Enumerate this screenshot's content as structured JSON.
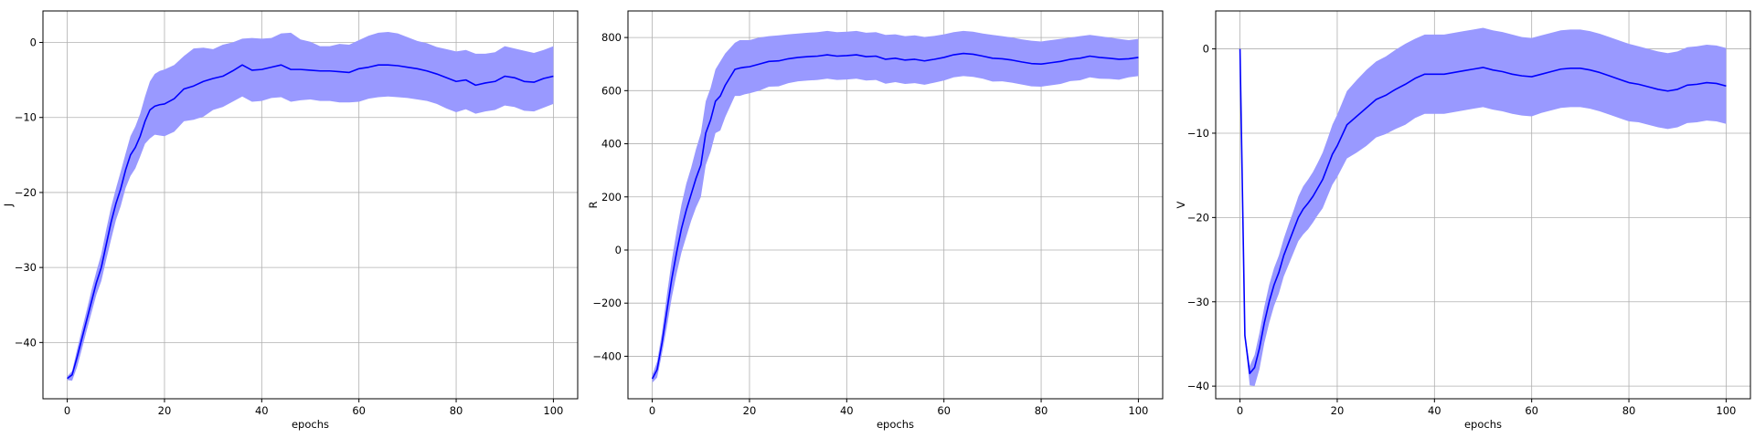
{
  "chart_data": [
    {
      "type": "line",
      "xlabel": "epochs",
      "ylabel": "J",
      "xlim": [
        -5,
        105
      ],
      "ylim": [
        -47.5,
        4.2
      ],
      "xticks": [
        0,
        20,
        40,
        60,
        80,
        100
      ],
      "yticks": [
        -40,
        -30,
        -20,
        -10,
        0
      ],
      "grid": true,
      "series": [
        {
          "x": [
            0,
            1,
            2,
            3,
            4,
            5,
            6,
            7,
            8,
            9,
            10,
            11,
            12,
            13,
            14,
            15,
            16,
            17,
            18,
            19,
            20,
            22,
            24,
            26,
            28,
            30,
            32,
            34,
            36,
            38,
            40,
            42,
            44,
            46,
            48,
            50,
            52,
            54,
            56,
            58,
            60,
            62,
            64,
            66,
            68,
            70,
            72,
            74,
            76,
            78,
            80,
            82,
            84,
            86,
            88,
            90,
            92,
            94,
            96,
            98,
            100
          ],
          "mean": [
            -44.8,
            -44.3,
            -42.0,
            -39.5,
            -37.0,
            -34.5,
            -32.0,
            -30.0,
            -27.0,
            -24.0,
            -21.5,
            -19.5,
            -17.0,
            -15.0,
            -14.0,
            -12.5,
            -10.5,
            -9.0,
            -8.5,
            -8.3,
            -8.2,
            -7.5,
            -6.2,
            -5.8,
            -5.2,
            -4.8,
            -4.5,
            -3.8,
            -3.0,
            -3.7,
            -3.6,
            -3.3,
            -3.0,
            -3.6,
            -3.6,
            -3.7,
            -3.8,
            -3.8,
            -3.9,
            -4.0,
            -3.5,
            -3.3,
            -3.0,
            -3.0,
            -3.1,
            -3.3,
            -3.5,
            -3.8,
            -4.2,
            -4.7,
            -5.2,
            -5.0,
            -5.7,
            -5.4,
            -5.2,
            -4.5,
            -4.7,
            -5.2,
            -5.3,
            -4.8,
            -4.5
          ],
          "upper": [
            -44.5,
            -43.8,
            -41.0,
            -38.3,
            -35.7,
            -33.0,
            -30.5,
            -28.2,
            -25.0,
            -22.0,
            -19.5,
            -17.2,
            -14.8,
            -12.5,
            -11.2,
            -9.5,
            -7.2,
            -5.2,
            -4.2,
            -3.8,
            -3.6,
            -3.0,
            -1.8,
            -0.8,
            -0.7,
            -0.9,
            -0.3,
            0.0,
            0.5,
            0.6,
            0.5,
            0.6,
            1.2,
            1.3,
            0.4,
            0.1,
            -0.5,
            -0.5,
            -0.2,
            -0.3,
            0.3,
            0.9,
            1.3,
            1.4,
            1.2,
            0.7,
            0.2,
            -0.1,
            -0.6,
            -0.9,
            -1.2,
            -1.0,
            -1.5,
            -1.5,
            -1.3,
            -0.5,
            -0.8,
            -1.1,
            -1.4,
            -1.0,
            -0.5
          ],
          "lower": [
            -45.0,
            -45.1,
            -43.3,
            -40.9,
            -38.4,
            -36.0,
            -33.6,
            -31.8,
            -29.0,
            -26.3,
            -23.7,
            -21.8,
            -19.4,
            -17.8,
            -16.8,
            -15.2,
            -13.5,
            -12.8,
            -12.3,
            -12.4,
            -12.5,
            -11.9,
            -10.5,
            -10.3,
            -9.9,
            -9.0,
            -8.6,
            -7.9,
            -7.2,
            -7.9,
            -7.8,
            -7.4,
            -7.3,
            -7.9,
            -7.7,
            -7.6,
            -7.8,
            -7.8,
            -8.0,
            -8.0,
            -7.9,
            -7.5,
            -7.3,
            -7.2,
            -7.3,
            -7.4,
            -7.6,
            -7.8,
            -8.2,
            -8.8,
            -9.3,
            -8.9,
            -9.5,
            -9.2,
            -9.0,
            -8.4,
            -8.6,
            -9.1,
            -9.2,
            -8.7,
            -8.2
          ]
        }
      ]
    },
    {
      "type": "line",
      "xlabel": "epochs",
      "ylabel": "R",
      "xlim": [
        -5,
        105
      ],
      "ylim": [
        -560,
        900
      ],
      "xticks": [
        0,
        20,
        40,
        60,
        80,
        100
      ],
      "yticks": [
        -400,
        -200,
        0,
        200,
        400,
        600,
        800
      ],
      "grid": true,
      "series": [
        {
          "x": [
            0,
            1,
            2,
            3,
            4,
            5,
            6,
            7,
            8,
            9,
            10,
            11,
            12,
            13,
            14,
            15,
            16,
            17,
            18,
            19,
            20,
            22,
            24,
            26,
            28,
            30,
            32,
            34,
            36,
            38,
            40,
            42,
            44,
            46,
            48,
            50,
            52,
            54,
            56,
            58,
            60,
            62,
            64,
            66,
            68,
            70,
            72,
            74,
            76,
            78,
            80,
            82,
            84,
            86,
            88,
            90,
            92,
            94,
            96,
            98,
            100
          ],
          "mean": [
            -485,
            -450,
            -350,
            -230,
            -110,
            -10,
            80,
            150,
            210,
            270,
            320,
            440,
            490,
            560,
            580,
            620,
            650,
            680,
            685,
            688,
            690,
            700,
            710,
            712,
            720,
            725,
            728,
            730,
            735,
            730,
            732,
            735,
            728,
            730,
            718,
            722,
            715,
            718,
            712,
            718,
            725,
            735,
            740,
            737,
            730,
            722,
            720,
            715,
            708,
            702,
            700,
            705,
            710,
            718,
            722,
            730,
            725,
            722,
            718,
            720,
            725
          ],
          "upper": [
            -470,
            -420,
            -310,
            -170,
            -40,
            70,
            170,
            250,
            310,
            380,
            440,
            560,
            610,
            680,
            710,
            740,
            760,
            780,
            790,
            790,
            790,
            800,
            805,
            808,
            812,
            815,
            818,
            820,
            825,
            820,
            822,
            825,
            818,
            820,
            810,
            812,
            805,
            808,
            802,
            806,
            812,
            820,
            825,
            822,
            815,
            810,
            805,
            800,
            793,
            788,
            785,
            790,
            795,
            800,
            805,
            810,
            805,
            800,
            795,
            790,
            795
          ],
          "lower": [
            -500,
            -480,
            -390,
            -290,
            -180,
            -90,
            -10,
            50,
            110,
            160,
            200,
            320,
            370,
            440,
            450,
            500,
            540,
            580,
            580,
            586,
            590,
            600,
            615,
            616,
            628,
            635,
            638,
            640,
            645,
            640,
            642,
            645,
            638,
            640,
            626,
            632,
            625,
            628,
            622,
            630,
            638,
            650,
            655,
            652,
            645,
            634,
            635,
            630,
            623,
            616,
            615,
            620,
            625,
            636,
            639,
            650,
            645,
            644,
            641,
            650,
            655
          ]
        }
      ]
    },
    {
      "type": "line",
      "xlabel": "epochs",
      "ylabel": "V",
      "xlim": [
        -5,
        105
      ],
      "ylim": [
        -41.5,
        4.5
      ],
      "xticks": [
        0,
        20,
        40,
        60,
        80,
        100
      ],
      "yticks": [
        -40,
        -30,
        -20,
        -10,
        0
      ],
      "grid": true,
      "series": [
        {
          "x": [
            0,
            1,
            2,
            3,
            4,
            5,
            6,
            7,
            8,
            9,
            10,
            11,
            12,
            13,
            14,
            15,
            16,
            17,
            18,
            19,
            20,
            22,
            24,
            26,
            28,
            30,
            32,
            34,
            36,
            38,
            40,
            42,
            44,
            46,
            48,
            50,
            52,
            54,
            56,
            58,
            60,
            62,
            64,
            66,
            68,
            70,
            72,
            74,
            76,
            78,
            80,
            82,
            84,
            86,
            88,
            90,
            92,
            94,
            96,
            98,
            100
          ],
          "mean": [
            0,
            -34.0,
            -38.5,
            -37.8,
            -35.5,
            -32.5,
            -30.0,
            -28.0,
            -26.5,
            -24.5,
            -23.0,
            -21.5,
            -20.0,
            -19.0,
            -18.3,
            -17.5,
            -16.5,
            -15.5,
            -14.0,
            -12.5,
            -11.5,
            -9.0,
            -8.0,
            -7.0,
            -6.0,
            -5.5,
            -4.8,
            -4.2,
            -3.5,
            -3.0,
            -3.0,
            -3.0,
            -2.8,
            -2.6,
            -2.4,
            -2.2,
            -2.5,
            -2.7,
            -3.0,
            -3.2,
            -3.3,
            -3.0,
            -2.7,
            -2.4,
            -2.3,
            -2.3,
            -2.5,
            -2.8,
            -3.2,
            -3.6,
            -4.0,
            -4.2,
            -4.5,
            -4.8,
            -5.0,
            -4.8,
            -4.3,
            -4.2,
            -4.0,
            -4.1,
            -4.4
          ],
          "upper": [
            0,
            -33.6,
            -37.6,
            -36.3,
            -33.7,
            -30.6,
            -28.0,
            -26.0,
            -24.5,
            -22.5,
            -20.8,
            -19.2,
            -17.5,
            -16.3,
            -15.5,
            -14.6,
            -13.5,
            -12.3,
            -10.7,
            -9.0,
            -7.8,
            -5.0,
            -3.7,
            -2.5,
            -1.5,
            -0.9,
            -0.1,
            0.6,
            1.2,
            1.7,
            1.7,
            1.7,
            1.9,
            2.1,
            2.3,
            2.5,
            2.2,
            2.0,
            1.7,
            1.4,
            1.3,
            1.6,
            1.9,
            2.2,
            2.3,
            2.3,
            2.1,
            1.8,
            1.4,
            1.0,
            0.6,
            0.3,
            0.0,
            -0.3,
            -0.5,
            -0.3,
            0.2,
            0.3,
            0.5,
            0.4,
            0.1
          ],
          "lower": [
            0,
            -34.4,
            -39.9,
            -40.0,
            -38.0,
            -34.9,
            -32.5,
            -30.5,
            -29.0,
            -27.0,
            -25.6,
            -24.2,
            -22.8,
            -22.0,
            -21.4,
            -20.6,
            -19.7,
            -18.9,
            -17.5,
            -16.1,
            -15.2,
            -13.0,
            -12.3,
            -11.5,
            -10.5,
            -10.1,
            -9.5,
            -9.0,
            -8.2,
            -7.7,
            -7.7,
            -7.7,
            -7.5,
            -7.3,
            -7.1,
            -6.9,
            -7.2,
            -7.4,
            -7.7,
            -7.9,
            -8.0,
            -7.6,
            -7.3,
            -7.0,
            -6.9,
            -6.9,
            -7.1,
            -7.4,
            -7.8,
            -8.2,
            -8.6,
            -8.7,
            -9.0,
            -9.3,
            -9.5,
            -9.3,
            -8.8,
            -8.7,
            -8.5,
            -8.6,
            -8.9
          ]
        }
      ]
    }
  ],
  "colors": {
    "line": "#0000ff",
    "band": "#9999ff",
    "grid": "#b0b0b0",
    "axes": "#000000"
  }
}
